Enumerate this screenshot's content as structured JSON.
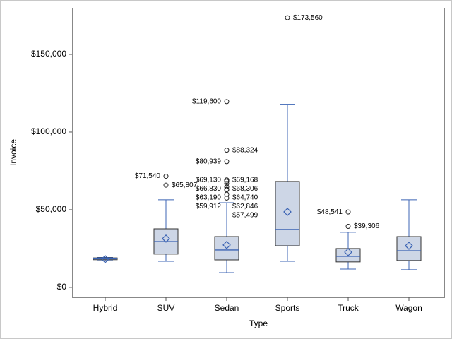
{
  "chart_data": {
    "type": "box",
    "x_label": "Type",
    "y_label": "Invoice",
    "categories": [
      "Hybrid",
      "SUV",
      "Sedan",
      "Sports",
      "Truck",
      "Wagon"
    ],
    "ylim": [
      -6400,
      180000
    ],
    "yticks": [
      {
        "value": 0,
        "label": "$0"
      },
      {
        "value": 50000,
        "label": "$50,000"
      },
      {
        "value": 100000,
        "label": "$100,000"
      },
      {
        "value": 150000,
        "label": "$150,000"
      }
    ],
    "box_color": "#cdd6e6",
    "line_color": "#3c64b4",
    "boxes": [
      {
        "min": 17200,
        "q1": 17800,
        "median": 18400,
        "q3": 19000,
        "max": 19300,
        "mean": 18200,
        "outliers": [],
        "outlier_labels": []
      },
      {
        "min": 16800,
        "q1": 21400,
        "median": 29500,
        "q3": 37700,
        "max": 56400,
        "mean": 31400,
        "outliers": [
          71540,
          65807
        ],
        "outlier_labels": [
          "$71,540",
          "$65,807"
        ]
      },
      {
        "min": 9500,
        "q1": 17700,
        "median": 24100,
        "q3": 32700,
        "max": 54500,
        "mean": 27300,
        "outliers": [
          119600,
          88324,
          80939,
          69168,
          69130,
          68306,
          66830,
          64740,
          63190,
          62846,
          59912,
          57499
        ],
        "outlier_labels": [
          "$119,600",
          "$88,324",
          "$80,939",
          "$69,168",
          "$69,130",
          "$68,306",
          "$66,830",
          "$64,740",
          "$63,190",
          "$62,846",
          "$59,912",
          "$57,499"
        ]
      },
      {
        "min": 16800,
        "q1": 26800,
        "median": 37300,
        "q3": 68200,
        "max": 117900,
        "mean": 48600,
        "outliers": [
          173560
        ],
        "outlier_labels": [
          "$173,560"
        ]
      },
      {
        "min": 11800,
        "q1": 16400,
        "median": 20000,
        "q3": 25000,
        "max": 35500,
        "mean": 22700,
        "outliers": [
          48541,
          39306
        ],
        "outlier_labels": [
          "$48,541",
          "$39,306"
        ]
      },
      {
        "min": 11400,
        "q1": 17300,
        "median": 23600,
        "q3": 32700,
        "max": 56400,
        "mean": 26800,
        "outliers": [],
        "outlier_labels": []
      }
    ]
  }
}
